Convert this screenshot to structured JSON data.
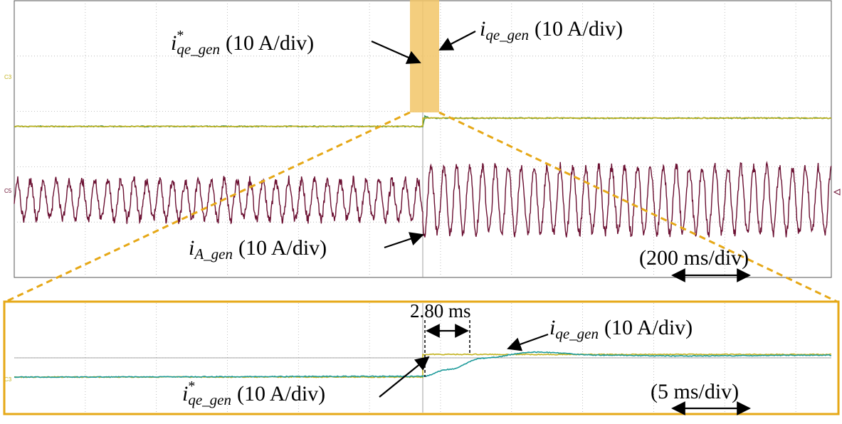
{
  "colors": {
    "grid": "#b0b0b0",
    "trace_green": "#3a8a4a",
    "trace_yellow": "#c2b21e",
    "trace_teal": "#1c9a9a",
    "trace_maroon": "#6b1032",
    "zoom": "#e6a817",
    "zoom_fill": "#f2c567",
    "frame": "#555555"
  },
  "chart_data": [
    {
      "type": "line",
      "panel": "top",
      "time_scale": "(200 ms/div)",
      "channel_markers": [
        "C3",
        "C5"
      ],
      "series": [
        {
          "name_main": "i",
          "name_sup": "*",
          "name_sub": "qe_gen",
          "scale": "(10 A/div)",
          "color": "#c2b21e",
          "x": [
            0,
            5.75,
            5.75,
            11.5
          ],
          "y": [
            3.82,
            3.82,
            4.42,
            4.42
          ]
        },
        {
          "name_main": "i",
          "name_sup": "",
          "name_sub": "qe_gen",
          "scale": "(10 A/div)",
          "color": "#3a8a4a",
          "x": [
            0,
            5.75,
            5.78,
            5.85,
            11.5
          ],
          "y": [
            3.82,
            3.82,
            4.54,
            4.42,
            4.42
          ]
        },
        {
          "name_main": "i",
          "name_sup": "",
          "name_sub": "A_gen",
          "scale": "(10 A/div)",
          "color": "#6b1032",
          "type": "sine",
          "segments": [
            {
              "t_start": 0,
              "t_end": 5.75,
              "cycles_per_div": 5.5,
              "amplitude_div": 0.35,
              "offset_div": 1.35
            },
            {
              "t_start": 5.75,
              "t_end": 11.5,
              "cycles_per_div": 5.5,
              "amplitude_div": 0.6,
              "offset_div": 1.35
            }
          ]
        }
      ]
    },
    {
      "type": "line",
      "panel": "zoom",
      "time_scale": "(5 ms/div)",
      "annotation": "2.80 ms",
      "channel_markers": [
        "C3"
      ],
      "series": [
        {
          "name_main": "i",
          "name_sup": "*",
          "name_sub": "qe_gen",
          "scale": "(10 A/div)",
          "color": "#c2b21e",
          "x": [
            0,
            5.75,
            5.75,
            11.5
          ],
          "y": [
            0,
            0,
            0.6,
            0.6
          ]
        },
        {
          "name_main": "i",
          "name_sup": "",
          "name_sub": "qe_gen",
          "scale": "(10 A/div)",
          "color": "#1c9a9a",
          "x": [
            0,
            5.75,
            6.1,
            6.6,
            7.3,
            8.3,
            9.3,
            11.5
          ],
          "y": [
            0,
            0.02,
            0.2,
            0.5,
            0.66,
            0.58,
            0.56,
            0.58
          ]
        }
      ]
    }
  ]
}
